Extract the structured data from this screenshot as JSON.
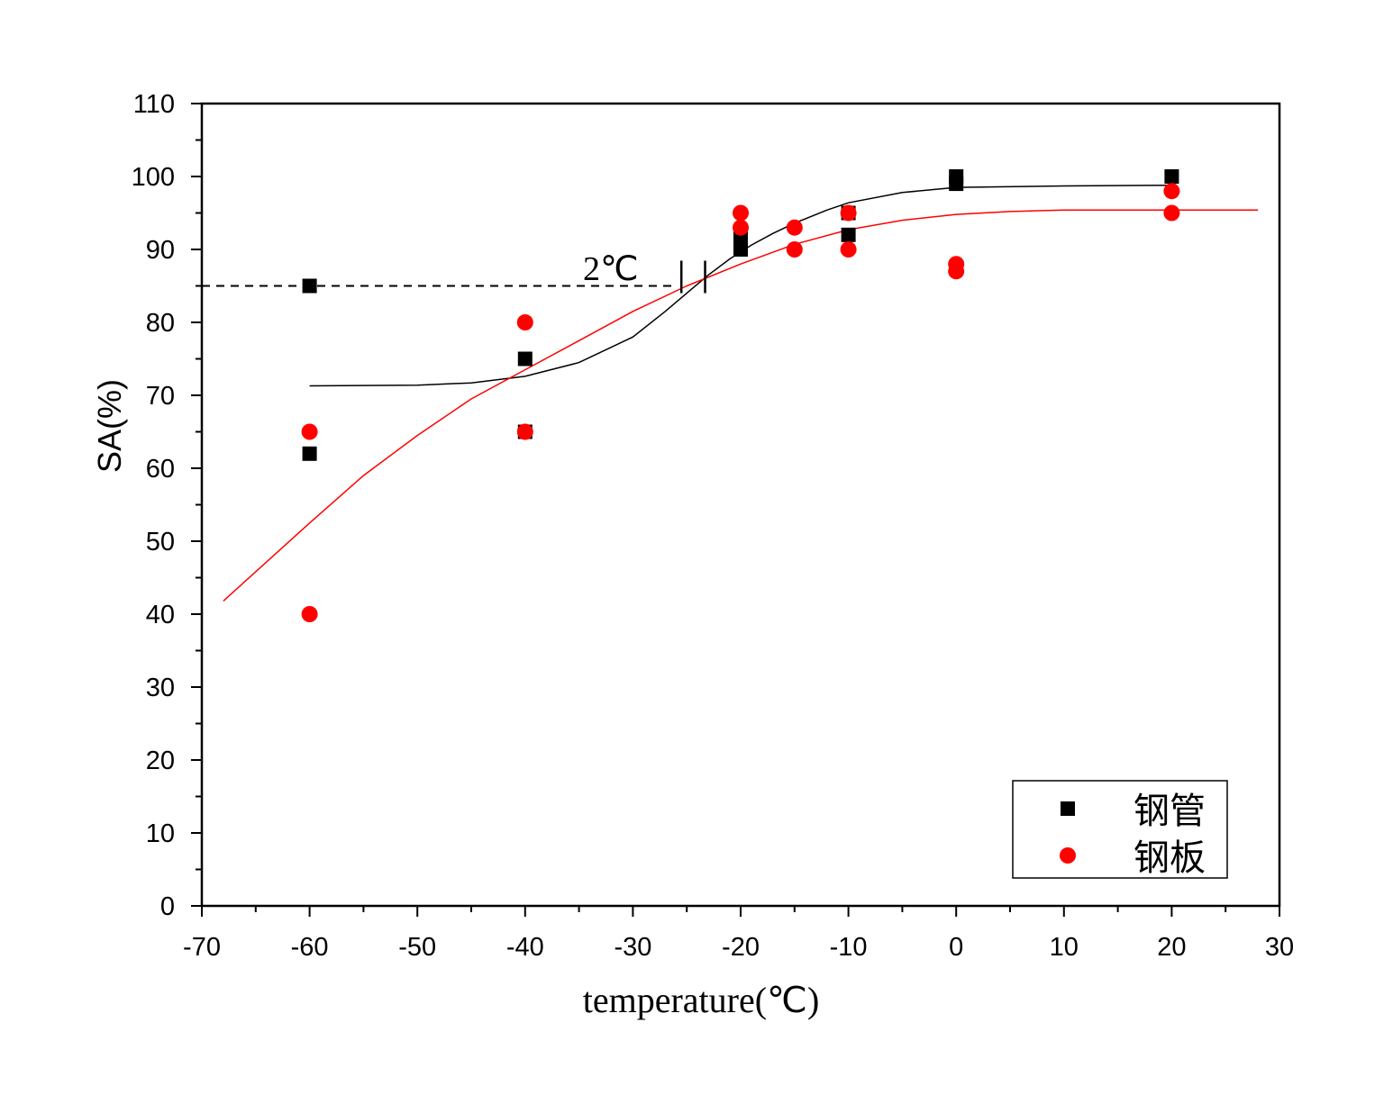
{
  "chart_data": {
    "type": "scatter",
    "xlabel": "temperature(℃)",
    "ylabel": "SA(%)",
    "xlim": [
      -70,
      30
    ],
    "ylim": [
      0,
      110
    ],
    "xticks": [
      -70,
      -60,
      -50,
      -40,
      -30,
      -20,
      -10,
      0,
      10,
      20,
      30
    ],
    "yticks": [
      0,
      10,
      20,
      30,
      40,
      50,
      60,
      70,
      80,
      90,
      100,
      110
    ],
    "grid": false,
    "legend_position": "bottom-right",
    "series": [
      {
        "name": "钢管",
        "marker": "square",
        "color": "#000000",
        "points": [
          [
            -60,
            85
          ],
          [
            -60,
            62
          ],
          [
            -40,
            75
          ],
          [
            -40,
            65
          ],
          [
            -20,
            92
          ],
          [
            -20,
            91
          ],
          [
            -20,
            90
          ],
          [
            -10,
            95
          ],
          [
            -10,
            92
          ],
          [
            0,
            100
          ],
          [
            0,
            99
          ],
          [
            20,
            100
          ]
        ],
        "fit_curve": {
          "x": [
            -60,
            -50,
            -45,
            -40,
            -35,
            -30,
            -27,
            -25,
            -23,
            -21,
            -19,
            -17,
            -15,
            -12,
            -10,
            -5,
            0,
            10,
            20
          ],
          "y": [
            71.3,
            71.4,
            71.7,
            72.6,
            74.5,
            78.0,
            81.5,
            84.0,
            86.5,
            88.7,
            90.6,
            92.2,
            93.6,
            95.4,
            96.4,
            97.8,
            98.5,
            98.7,
            98.8
          ]
        }
      },
      {
        "name": "钢板",
        "marker": "circle",
        "color": "#ff0000",
        "points": [
          [
            -60,
            65
          ],
          [
            -60,
            40
          ],
          [
            -40,
            80
          ],
          [
            -40,
            65
          ],
          [
            -20,
            95
          ],
          [
            -20,
            93
          ],
          [
            -15,
            93
          ],
          [
            -15,
            90
          ],
          [
            -10,
            95
          ],
          [
            -10,
            90
          ],
          [
            0,
            88
          ],
          [
            0,
            87
          ],
          [
            20,
            98
          ],
          [
            20,
            95
          ]
        ],
        "fit_curve": {
          "x": [
            -68,
            -60,
            -55,
            -50,
            -45,
            -40,
            -35,
            -30,
            -25,
            -20,
            -15,
            -10,
            -5,
            0,
            5,
            10,
            20,
            28
          ],
          "y": [
            41.8,
            52.5,
            59.0,
            64.5,
            69.5,
            73.5,
            77.5,
            81.5,
            85.0,
            88.0,
            90.7,
            92.7,
            94.0,
            94.8,
            95.2,
            95.4,
            95.4,
            95.4
          ]
        }
      }
    ],
    "annotation": {
      "text": "2℃",
      "reference_y": 85,
      "dashed_from_x": -70,
      "dashed_to_x": -26,
      "markers_x": [
        -25.5,
        -23.3
      ]
    }
  }
}
